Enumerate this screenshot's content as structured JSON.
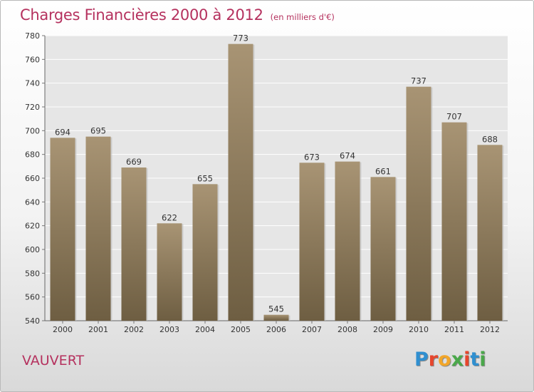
{
  "header": {
    "title": "Charges Financières 2000 à 2012",
    "subtitle": "(en milliers d'€)"
  },
  "footer": {
    "commune": "VAUVERT",
    "logo": "Proxiti",
    "logo_colors": [
      "#2f8fd0",
      "#e7462d",
      "#f2a629",
      "#4aa84a",
      "#e7462d",
      "#2f8fd0",
      "#4aa84a"
    ]
  },
  "chart_data": {
    "type": "bar",
    "title": "Charges Financières 2000 à 2012",
    "subtitle": "(en milliers d'€)",
    "categories": [
      "2000",
      "2001",
      "2002",
      "2003",
      "2004",
      "2005",
      "2006",
      "2007",
      "2008",
      "2009",
      "2010",
      "2011",
      "2012"
    ],
    "values": [
      694,
      695,
      669,
      622,
      655,
      773,
      545,
      673,
      674,
      661,
      737,
      707,
      688
    ],
    "ylim": [
      540,
      780
    ],
    "yticks": [
      540,
      560,
      580,
      600,
      620,
      640,
      660,
      680,
      700,
      720,
      740,
      760,
      780
    ],
    "grid": true,
    "bar_color_top": "#a89474",
    "bar_color_bottom": "#6e5e42",
    "plot_background": "#e6e6e6"
  }
}
